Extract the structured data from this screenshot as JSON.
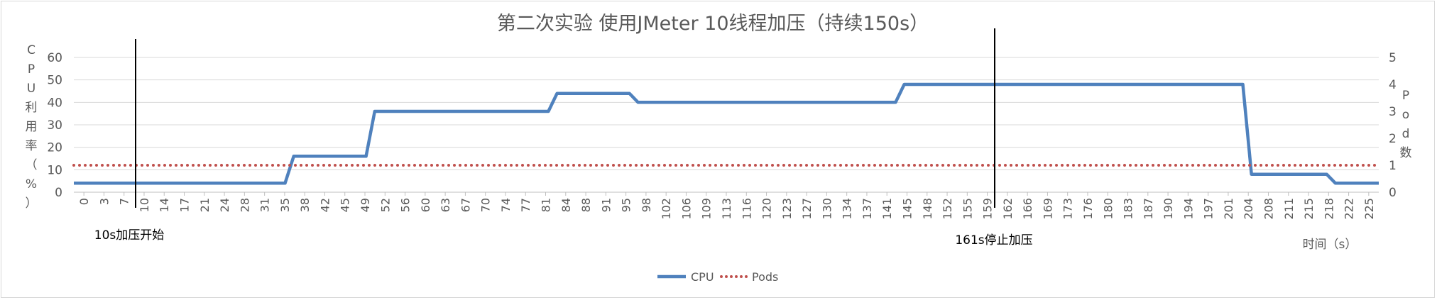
{
  "chart_data": {
    "type": "line",
    "title": "第二次实验 使用JMeter 10线程加压（持续150s）",
    "ylabel": "CPU利用率（%）",
    "y2label": "Pod数",
    "xlabel": "时间（s）",
    "ylim": [
      0,
      60
    ],
    "y2lim": [
      0,
      5
    ],
    "yticks": [
      0,
      10,
      20,
      30,
      40,
      50,
      60
    ],
    "y2ticks": [
      0,
      1,
      2,
      3,
      4,
      5
    ],
    "grid": true,
    "legend_position": "bottom",
    "xticklabels": [
      "0",
      "3",
      "7",
      "10",
      "14",
      "17",
      "21",
      "24",
      "28",
      "31",
      "35",
      "38",
      "42",
      "45",
      "49",
      "52",
      "56",
      "60",
      "63",
      "67",
      "70",
      "74",
      "77",
      "81",
      "84",
      "88",
      "91",
      "95",
      "98",
      "102",
      "106",
      "109",
      "113",
      "116",
      "120",
      "123",
      "127",
      "130",
      "134",
      "137",
      "141",
      "145",
      "148",
      "152",
      "155",
      "159",
      "162",
      "166",
      "169",
      "173",
      "176",
      "180",
      "183",
      "187",
      "190",
      "194",
      "197",
      "201",
      "204",
      "208",
      "211",
      "215",
      "218",
      "222",
      "225"
    ],
    "series": [
      {
        "name": "CPU",
        "axis": "left",
        "color": "#4f81bd",
        "style": "solid",
        "points": [
          [
            0,
            4
          ],
          [
            36.5,
            4
          ],
          [
            38,
            16
          ],
          [
            50.5,
            16
          ],
          [
            52,
            36
          ],
          [
            82,
            36
          ],
          [
            83.5,
            44
          ],
          [
            96,
            44
          ],
          [
            97.5,
            40
          ],
          [
            142,
            40
          ],
          [
            143.5,
            48
          ],
          [
            202,
            48
          ],
          [
            203.5,
            8
          ],
          [
            216.5,
            8
          ],
          [
            218,
            4
          ],
          [
            225.5,
            4
          ]
        ]
      },
      {
        "name": "Pods",
        "axis": "right",
        "color": "#c0504d",
        "style": "dotted",
        "points": [
          [
            0,
            1
          ],
          [
            225.5,
            1
          ]
        ]
      }
    ],
    "annotations": [
      {
        "x": 10,
        "text": "10s加压开始"
      },
      {
        "x": 161,
        "text": "161s停止加压"
      }
    ]
  }
}
